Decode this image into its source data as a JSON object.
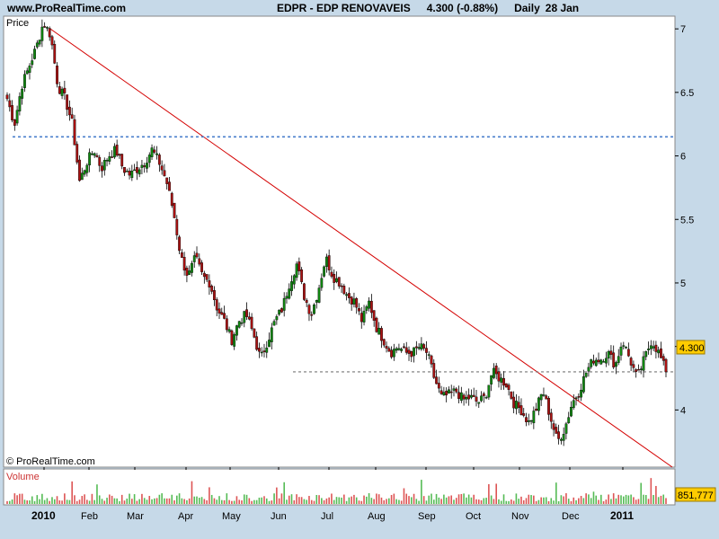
{
  "header": {
    "site": "www.ProRealTime.com",
    "symbol": "EDPR - EDP RENOVAVEIS",
    "last": "4.300 (-0.88%)",
    "period": "Daily",
    "date": "28 Jan"
  },
  "panel_labels": {
    "price": "Price",
    "volume": "Volume",
    "copyright": "© ProRealTime.com"
  },
  "tags": {
    "last_price": "4.300",
    "last_volume": "851,777"
  },
  "colors": {
    "background": "#c6d9e8",
    "up": "#118811",
    "down": "#aa1111",
    "trendline": "#d40000",
    "support": "#4a7fcc",
    "volume": "#dd5555",
    "tag": "#ffcc00"
  },
  "chart_data": {
    "type": "candlestick",
    "y_axis": {
      "range": [
        3.55,
        7.1
      ],
      "ticks": [
        "4",
        "4.5",
        "5",
        "5.5",
        "6",
        "6.5",
        "7"
      ]
    },
    "x_axis": {
      "ticks": [
        "2010",
        "Feb",
        "Mar",
        "Apr",
        "May",
        "Jun",
        "Jul",
        "Aug",
        "Sep",
        "Oct",
        "Nov",
        "Dec",
        "2011",
        "Jan"
      ],
      "labels_shown": [
        "2010",
        "Feb",
        "Mar",
        "Apr",
        "May",
        "Jun",
        "Jul",
        "Aug",
        "Sep",
        "Oct",
        "Nov",
        "Dec",
        "2011"
      ]
    },
    "series": [
      {
        "name": "price",
        "path": [
          [
            "Jan 04",
            6.45
          ],
          [
            "Jan 08",
            6.25
          ],
          [
            "Jan 14",
            6.55
          ],
          [
            "Jan 20",
            6.7
          ],
          [
            "Jan 25",
            6.85
          ],
          [
            "Jan 28",
            7.05
          ],
          [
            "Feb 01",
            6.95
          ],
          [
            "Feb 05",
            6.55
          ],
          [
            "Feb 09",
            6.45
          ],
          [
            "Feb 15",
            6.25
          ],
          [
            "Feb 19",
            5.8
          ],
          [
            "Feb 24",
            5.95
          ],
          [
            "Mar 01",
            6.05
          ],
          [
            "Mar 05",
            5.9
          ],
          [
            "Mar 10",
            6.0
          ],
          [
            "Mar 15",
            6.05
          ],
          [
            "Mar 19",
            5.9
          ],
          [
            "Mar 24",
            5.85
          ],
          [
            "Mar 30",
            5.9
          ],
          [
            "Apr 05",
            5.95
          ],
          [
            "Apr 08",
            6.05
          ],
          [
            "Apr 13",
            5.95
          ],
          [
            "Apr 16",
            5.8
          ],
          [
            "Apr 21",
            5.55
          ],
          [
            "Apr 26",
            5.2
          ],
          [
            "Apr 30",
            5.05
          ],
          [
            "May 05",
            5.2
          ],
          [
            "May 10",
            5.05
          ],
          [
            "May 14",
            5.0
          ],
          [
            "May 19",
            4.8
          ],
          [
            "May 24",
            4.7
          ],
          [
            "May 27",
            4.55
          ],
          [
            "Jun 01",
            4.7
          ],
          [
            "Jun 04",
            4.75
          ],
          [
            "Jun 08",
            4.6
          ],
          [
            "Jun 10",
            4.4
          ],
          [
            "Jun 15",
            4.55
          ],
          [
            "Jun 18",
            4.7
          ],
          [
            "Jun 23",
            4.8
          ],
          [
            "Jun 28",
            5.0
          ],
          [
            "Jul 01",
            5.15
          ],
          [
            "Jul 05",
            4.9
          ],
          [
            "Jul 08",
            4.75
          ],
          [
            "Jul 12",
            4.95
          ],
          [
            "Jul 15",
            5.2
          ],
          [
            "Jul 20",
            5.05
          ],
          [
            "Jul 23",
            5.0
          ],
          [
            "Jul 28",
            4.9
          ],
          [
            "Aug 02",
            4.85
          ],
          [
            "Aug 06",
            4.7
          ],
          [
            "Aug 11",
            4.85
          ],
          [
            "Aug 16",
            4.65
          ],
          [
            "Aug 19",
            4.55
          ],
          [
            "Aug 25",
            4.45
          ],
          [
            "Aug 30",
            4.5
          ],
          [
            "Sep 03",
            4.45
          ],
          [
            "Sep 08",
            4.45
          ],
          [
            "Sep 13",
            4.5
          ],
          [
            "Sep 16",
            4.45
          ],
          [
            "Sep 20",
            4.25
          ],
          [
            "Sep 24",
            4.1
          ],
          [
            "Sep 28",
            4.12
          ],
          [
            "Oct 01",
            4.15
          ],
          [
            "Oct 06",
            4.08
          ],
          [
            "Oct 11",
            4.1
          ],
          [
            "Oct 15",
            4.06
          ],
          [
            "Oct 20",
            4.1
          ],
          [
            "Oct 25",
            4.3
          ],
          [
            "Oct 28",
            4.25
          ],
          [
            "Nov 02",
            4.2
          ],
          [
            "Nov 05",
            4.05
          ],
          [
            "Nov 10",
            4.0
          ],
          [
            "Nov 15",
            3.9
          ],
          [
            "Nov 18",
            4.0
          ],
          [
            "Nov 23",
            4.15
          ],
          [
            "Nov 26",
            3.95
          ],
          [
            "Nov 30",
            3.75
          ],
          [
            "Dec 03",
            3.85
          ],
          [
            "Dec 07",
            4.05
          ],
          [
            "Dec 10",
            4.15
          ],
          [
            "Dec 13",
            4.3
          ],
          [
            "Dec 16",
            4.4
          ],
          [
            "Dec 21",
            4.4
          ],
          [
            "Dec 27",
            4.45
          ],
          [
            "Dec 31",
            4.35
          ],
          [
            "Jan 04",
            4.55
          ],
          [
            "Jan 07",
            4.4
          ],
          [
            "Jan 11",
            4.25
          ],
          [
            "Jan 14",
            4.4
          ],
          [
            "Jan 19",
            4.55
          ],
          [
            "Jan 24",
            4.45
          ],
          [
            "Jan 28",
            4.3
          ]
        ]
      }
    ],
    "lines": [
      {
        "name": "resistance",
        "from": [
          "Jan 29 2010",
          7.0
        ],
        "to": [
          "Jan 28 2011",
          3.55
        ]
      },
      {
        "name": "support",
        "value": 6.15,
        "style": "dotted"
      },
      {
        "name": "last",
        "value": 4.3,
        "style": "dotted"
      }
    ]
  }
}
